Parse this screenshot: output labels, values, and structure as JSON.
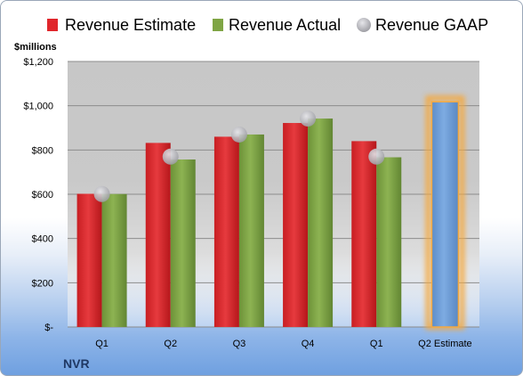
{
  "chart_data": {
    "type": "bar",
    "title": "",
    "xlabel": "",
    "ylabel": "",
    "unit_label": "$millions",
    "company": "NVR",
    "categories": [
      "Q1",
      "Q2",
      "Q3",
      "Q4",
      "Q1",
      "Q2 Estimate"
    ],
    "ylim": [
      0,
      1200
    ],
    "yticks": [
      0,
      200,
      400,
      600,
      800,
      1000,
      1200
    ],
    "ytick_labels": [
      "$-",
      "$200",
      "$400",
      "$600",
      "$800",
      "$1,000",
      "$1,200"
    ],
    "grid": true,
    "legend_position": "top",
    "series": [
      {
        "name": "Revenue Estimate",
        "kind": "bar",
        "color": "#e0262b",
        "values": [
          602,
          832,
          860,
          922,
          840,
          null
        ]
      },
      {
        "name": "Revenue Actual",
        "kind": "bar",
        "color": "#7fa544",
        "values": [
          601,
          757,
          870,
          942,
          767,
          null
        ]
      },
      {
        "name": "Revenue GAAP",
        "kind": "marker",
        "color": "#b8b8bc",
        "values": [
          601,
          770,
          870,
          942,
          770,
          null
        ]
      }
    ],
    "estimate_bar": {
      "category": "Q2 Estimate",
      "value": 1018,
      "color": "#6f9fd8",
      "glow": "#f4a940"
    }
  }
}
